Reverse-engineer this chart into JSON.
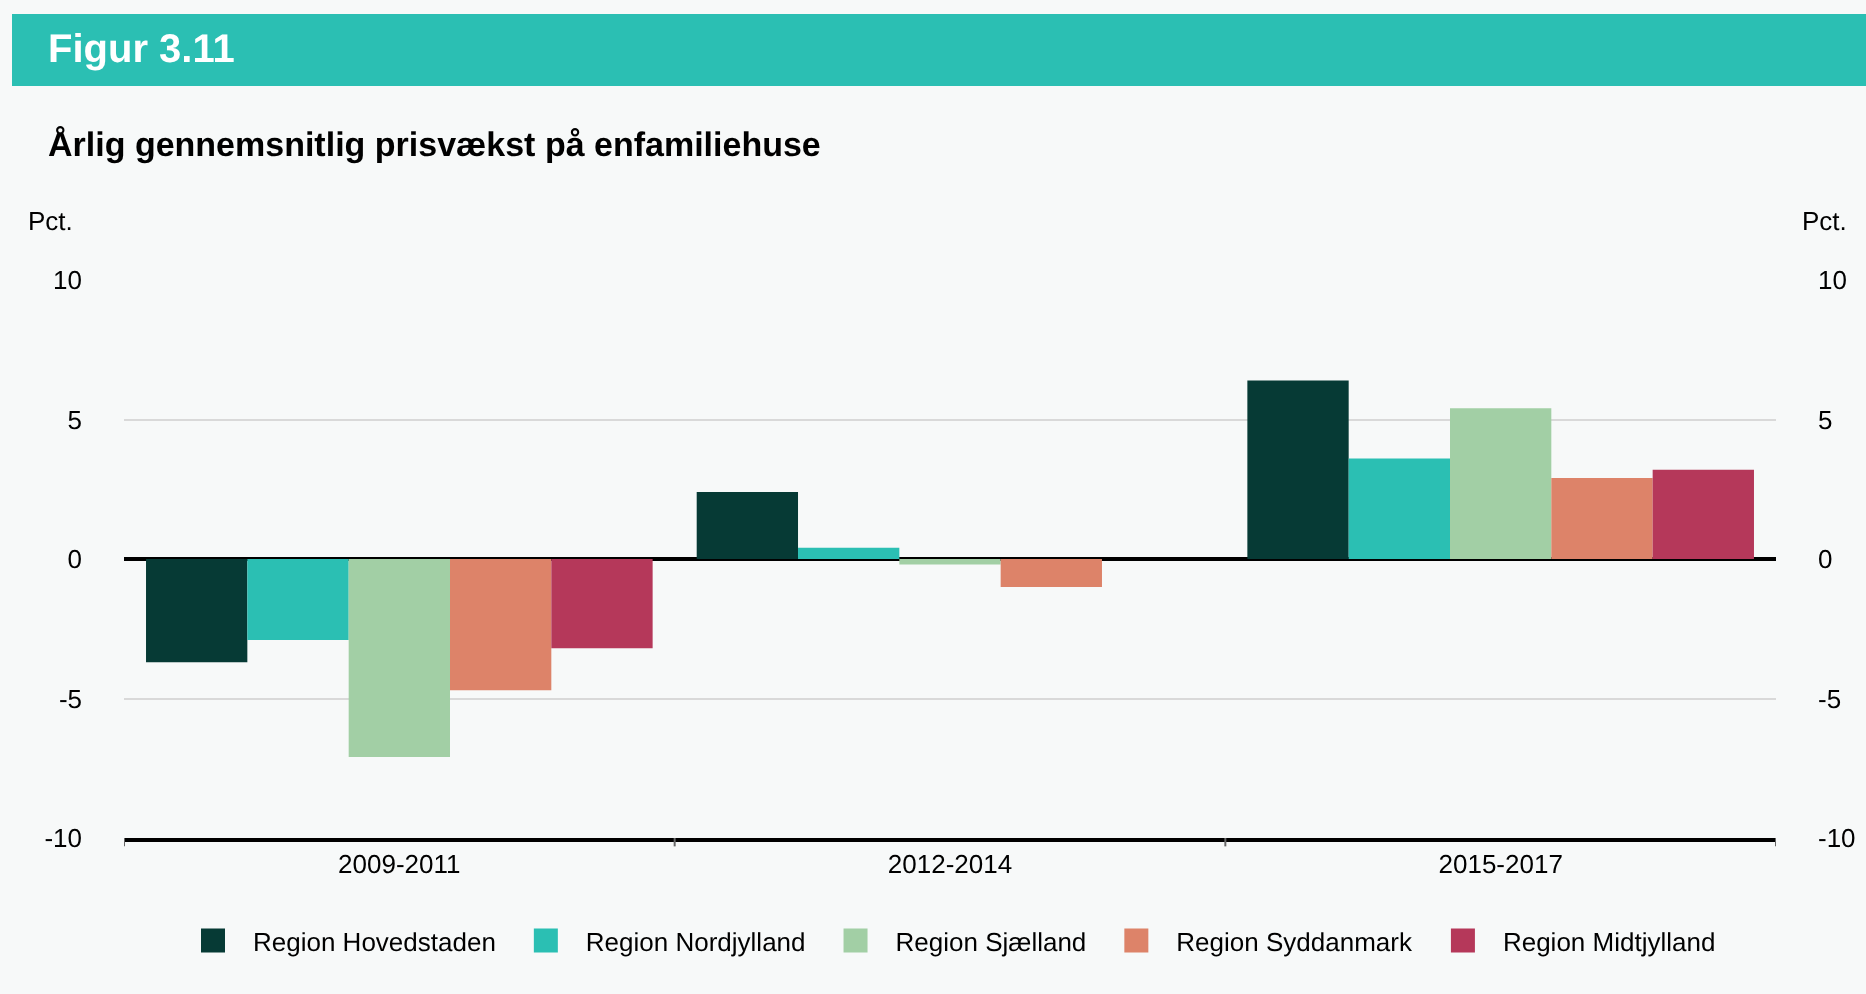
{
  "chart_data": {
    "type": "bar",
    "title": "Figur 3.11",
    "subtitle": "Årlig gennemsnitlig prisvækst på enfamiliehuse",
    "ylabel": "Pct.",
    "y2label": "Pct.",
    "categories": [
      "2009-2011",
      "2012-2014",
      "2015-2017"
    ],
    "series": [
      {
        "name": "Region Hovedstaden",
        "color": "#063a35",
        "values": [
          -3.7,
          2.4,
          6.4
        ]
      },
      {
        "name": "Region Nordjylland",
        "color": "#2bbfb3",
        "values": [
          -2.9,
          0.4,
          3.6
        ]
      },
      {
        "name": "Region Sjælland",
        "color": "#a2cfa5",
        "values": [
          -7.1,
          -0.2,
          5.4
        ]
      },
      {
        "name": "Region Syddanmark",
        "color": "#dd8369",
        "values": [
          -4.7,
          -1.0,
          2.9
        ]
      },
      {
        "name": "Region Midtjylland",
        "color": "#b5385a",
        "values": [
          -3.2,
          0.0,
          3.2
        ]
      }
    ],
    "ylim": [
      -10,
      10
    ],
    "yticks": [
      -10,
      -5,
      0,
      5,
      10
    ],
    "y2lim": [
      -10,
      10
    ],
    "y2ticks": [
      -10,
      -5,
      0,
      5,
      10
    ],
    "grid": "y",
    "legend": "bottom"
  }
}
